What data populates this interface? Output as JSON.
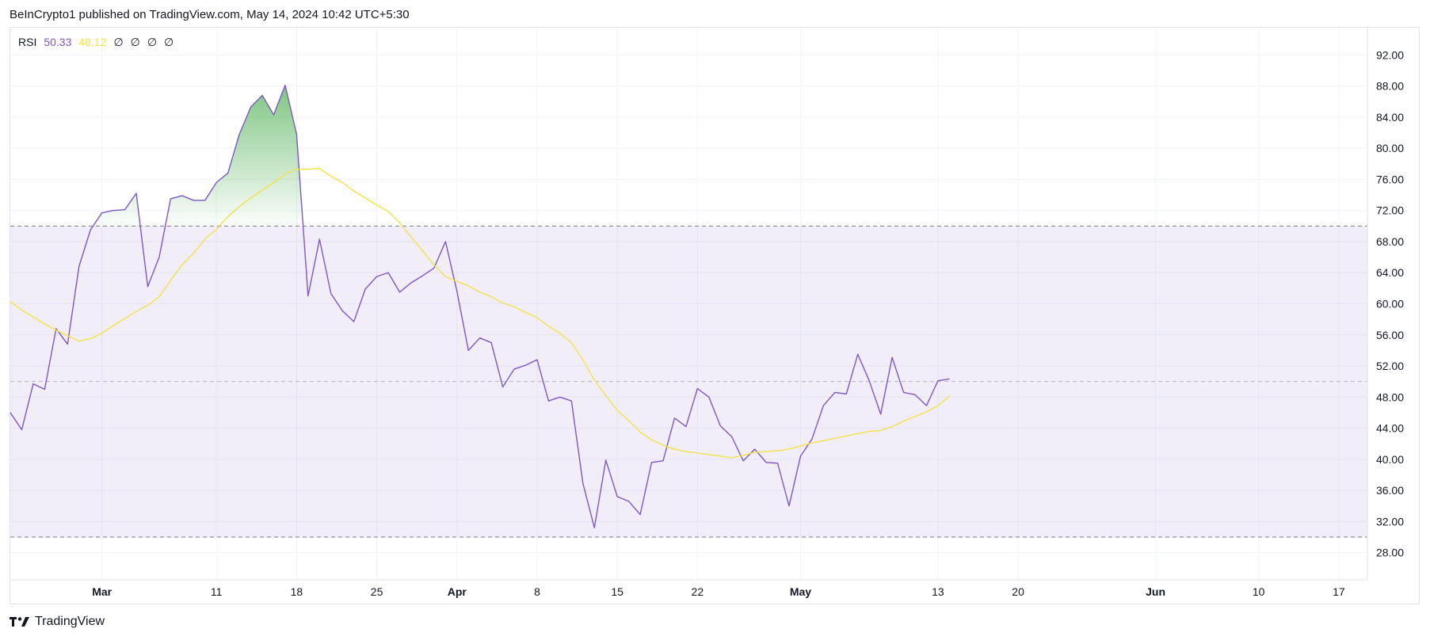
{
  "header": {
    "attribution": "BeInCrypto1 published on TradingView.com, May 14, 2024 10:42 UTC+5:30"
  },
  "legend": {
    "name": "RSI",
    "rsi_value": "50.33",
    "ma_value": "48.12",
    "na_values": [
      "∅",
      "∅",
      "∅",
      "∅"
    ]
  },
  "footer": {
    "brand": "TradingView"
  },
  "colors": {
    "rsi": "#7e57c2",
    "ma": "#f2e24a",
    "band": "#7e57c2",
    "overbought": "#4caf50",
    "grid": "#f0f3fa",
    "axis_text": "#131722"
  },
  "chart_data": {
    "type": "line",
    "title": "RSI",
    "ylim": [
      24.5,
      95.5
    ],
    "y_ticks": [
      "92.00",
      "88.00",
      "84.00",
      "80.00",
      "76.00",
      "72.00",
      "68.00",
      "64.00",
      "60.00",
      "56.00",
      "52.00",
      "48.00",
      "44.00",
      "40.00",
      "36.00",
      "32.00",
      "28.00"
    ],
    "y_tick_values": [
      92,
      88,
      84,
      80,
      76,
      72,
      68,
      64,
      60,
      56,
      52,
      48,
      44,
      40,
      36,
      32,
      28
    ],
    "x_ticks": [
      {
        "label": "Mar",
        "day": 8,
        "major": true
      },
      {
        "label": "11",
        "day": 18,
        "major": false
      },
      {
        "label": "18",
        "day": 25,
        "major": false
      },
      {
        "label": "25",
        "day": 32,
        "major": false
      },
      {
        "label": "Apr",
        "day": 39,
        "major": true
      },
      {
        "label": "8",
        "day": 46,
        "major": false
      },
      {
        "label": "15",
        "day": 53,
        "major": false
      },
      {
        "label": "22",
        "day": 60,
        "major": false
      },
      {
        "label": "May",
        "day": 69,
        "major": true
      },
      {
        "label": "13",
        "day": 81,
        "major": false
      },
      {
        "label": "20",
        "day": 88,
        "major": false
      },
      {
        "label": "Jun",
        "day": 100,
        "major": true
      },
      {
        "label": "10",
        "day": 109,
        "major": false
      },
      {
        "label": "17",
        "day": 116,
        "major": false
      }
    ],
    "x_range": [
      0,
      118.5
    ],
    "bands": {
      "upper": 70,
      "middle": 50,
      "lower": 30
    },
    "series": [
      {
        "name": "RSI",
        "values": [
          46.0,
          43.8,
          49.7,
          49.0,
          56.8,
          54.8,
          64.8,
          69.5,
          71.7,
          72.0,
          72.1,
          74.2,
          62.2,
          66.0,
          73.5,
          73.9,
          73.3,
          73.3,
          75.6,
          76.8,
          81.8,
          85.3,
          86.8,
          84.3,
          88.1,
          81.8,
          61.0,
          68.3,
          61.3,
          59.1,
          57.7,
          61.9,
          63.5,
          64.0,
          61.5,
          62.7,
          63.6,
          64.6,
          68.0,
          61.6,
          54.0,
          55.6,
          55.0,
          49.3,
          51.6,
          52.1,
          52.8,
          47.5,
          48.0,
          47.5,
          36.9,
          31.2,
          39.9,
          35.2,
          34.6,
          32.9,
          39.6,
          39.8,
          45.3,
          44.2,
          49.1,
          48.0,
          44.3,
          42.9,
          39.8,
          41.3,
          39.6,
          39.5,
          34.0,
          40.4,
          42.6,
          46.9,
          48.6,
          48.4,
          53.5,
          50.1,
          45.8,
          53.1,
          48.6,
          48.3,
          46.9,
          50.1,
          50.33
        ]
      },
      {
        "name": "RSI-based MA",
        "values": [
          60.3,
          59.2,
          58.3,
          57.4,
          56.6,
          55.9,
          55.2,
          55.5,
          56.2,
          57.2,
          58.1,
          59.0,
          59.8,
          60.9,
          63.0,
          65.0,
          66.5,
          68.3,
          69.6,
          71.2,
          72.5,
          73.6,
          74.6,
          75.6,
          76.7,
          77.3,
          77.3,
          77.4,
          76.4,
          75.6,
          74.5,
          73.6,
          72.7,
          71.9,
          70.4,
          68.6,
          66.8,
          65.0,
          63.5,
          62.9,
          62.3,
          61.5,
          60.9,
          60.1,
          59.6,
          58.9,
          58.2,
          57.1,
          56.2,
          55.0,
          52.8,
          50.2,
          48.2,
          46.3,
          45.0,
          43.5,
          42.5,
          41.8,
          41.3,
          41.0,
          40.8,
          40.6,
          40.4,
          40.2,
          40.5,
          40.9,
          41.0,
          41.1,
          41.3,
          41.7,
          42.1,
          42.4,
          42.7,
          43.0,
          43.3,
          43.6,
          43.7,
          44.2,
          44.9,
          45.5,
          46.1,
          46.9,
          48.12
        ]
      }
    ]
  }
}
